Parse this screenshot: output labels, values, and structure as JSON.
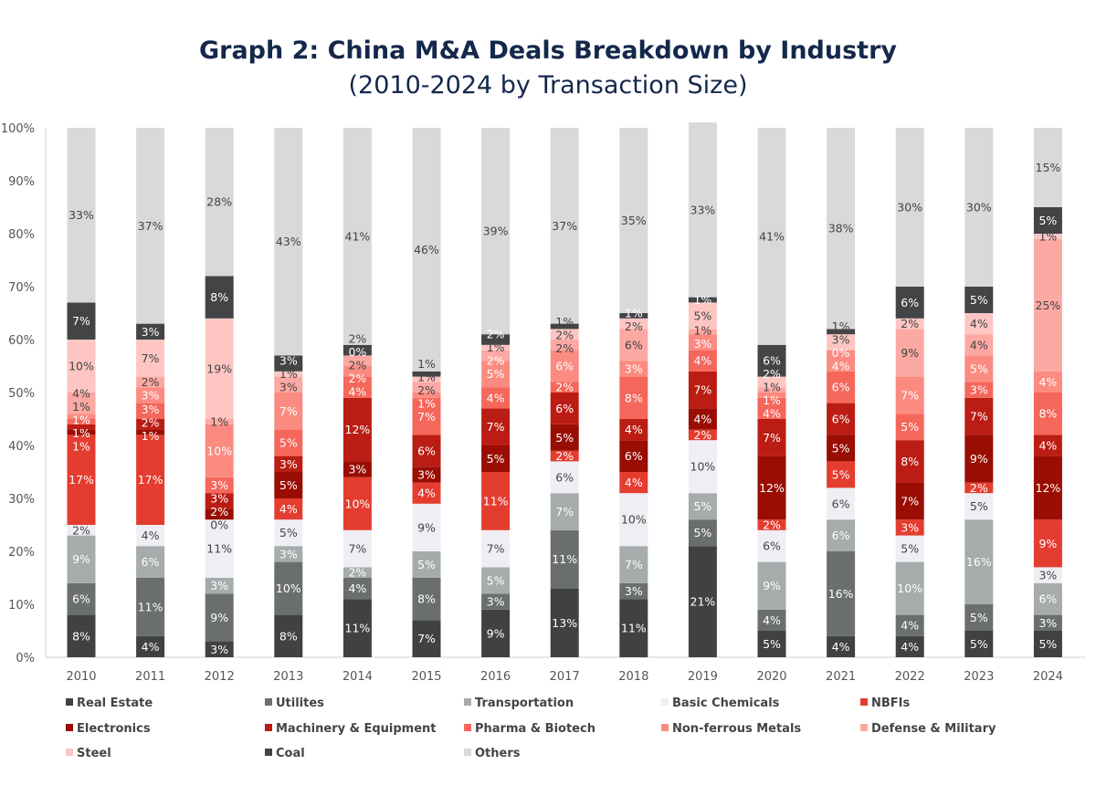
{
  "chart_data": {
    "type": "bar",
    "stacked": true,
    "title": "Graph 2: China M&A Deals Breakdown by Industry",
    "subtitle": "(2010-2024 by Transaction Size)",
    "xlabel": "",
    "ylabel": "",
    "ylim": [
      0,
      100
    ],
    "yticks": [
      "0%",
      "10%",
      "20%",
      "30%",
      "40%",
      "50%",
      "60%",
      "70%",
      "80%",
      "90%",
      "100%"
    ],
    "grid": false,
    "legend_position": "bottom",
    "categories": [
      "2010",
      "2011",
      "2012",
      "2013",
      "2014",
      "2015",
      "2016",
      "2017",
      "2018",
      "2019",
      "2020",
      "2021",
      "2022",
      "2023",
      "2024"
    ],
    "series": [
      {
        "name": "Real Estate",
        "color": "#404142",
        "label_color": "#ffffff",
        "values": [
          8,
          4,
          3,
          8,
          11,
          7,
          9,
          13,
          11,
          21,
          5,
          4,
          4,
          5,
          5
        ]
      },
      {
        "name": "Utilites",
        "color": "#6b6e6f",
        "label_color": "#ffffff",
        "values": [
          6,
          11,
          9,
          10,
          4,
          8,
          3,
          11,
          3,
          5,
          4,
          16,
          4,
          5,
          3
        ]
      },
      {
        "name": "Transportation",
        "color": "#a6abac",
        "label_color": "#ffffff",
        "values": [
          9,
          6,
          3,
          3,
          2,
          5,
          5,
          7,
          7,
          5,
          9,
          6,
          10,
          16,
          6
        ]
      },
      {
        "name": "Basic Chemicals",
        "color": "#efeef4",
        "label_color": "#444444",
        "values": [
          2,
          4,
          11,
          5,
          7,
          9,
          7,
          6,
          10,
          10,
          6,
          6,
          5,
          5,
          3
        ]
      },
      {
        "name": "NBFIs",
        "color": "#e43d30",
        "label_color": "#ffffff",
        "values": [
          17,
          17,
          0,
          4,
          10,
          4,
          11,
          2,
          4,
          2,
          2,
          5,
          3,
          2,
          9
        ]
      },
      {
        "name": "Electronics",
        "color": "#990d02",
        "label_color": "#ffffff",
        "values": [
          1,
          1,
          2,
          5,
          3,
          3,
          5,
          5,
          6,
          4,
          12,
          5,
          7,
          9,
          12
        ]
      },
      {
        "name": "Machinery & Equipment",
        "color": "#bb1d14",
        "label_color": "#ffffff",
        "values": [
          1,
          2,
          3,
          3,
          12,
          6,
          7,
          6,
          4,
          7,
          7,
          6,
          8,
          7,
          4
        ]
      },
      {
        "name": "Pharma & Biotech",
        "color": "#f5665b",
        "label_color": "#ffffff",
        "values": [
          1,
          3,
          3,
          5,
          4,
          7,
          4,
          2,
          8,
          4,
          4,
          6,
          5,
          3,
          8
        ]
      },
      {
        "name": "Non-ferrous Metals",
        "color": "#fb8b81",
        "label_color": "#ffffff",
        "values": [
          1,
          3,
          10,
          7,
          2,
          1,
          5,
          6,
          3,
          3,
          1,
          4,
          7,
          5,
          4
        ]
      },
      {
        "name": "Defense & Military",
        "color": "#fca8a3",
        "label_color": "#444444",
        "values": [
          4,
          2,
          1,
          3,
          2,
          2,
          2,
          2,
          6,
          1,
          1,
          0,
          9,
          4,
          25
        ]
      },
      {
        "name": "Steel",
        "color": "#fdc6c3",
        "label_color": "#444444",
        "values": [
          10,
          7,
          19,
          1,
          0,
          1,
          1,
          2,
          2,
          5,
          2,
          3,
          2,
          4,
          1
        ]
      },
      {
        "name": "Coal",
        "color": "#434446",
        "label_color": "#ffffff",
        "values": [
          7,
          3,
          8,
          3,
          2,
          1,
          2,
          1,
          1,
          1,
          6,
          1,
          6,
          5,
          5
        ]
      },
      {
        "name": "Others",
        "color": "#d9d9d9",
        "label_color": "#444444",
        "values": [
          33,
          37,
          28,
          43,
          41,
          46,
          39,
          37,
          35,
          33,
          41,
          38,
          30,
          30,
          15
        ]
      }
    ]
  }
}
